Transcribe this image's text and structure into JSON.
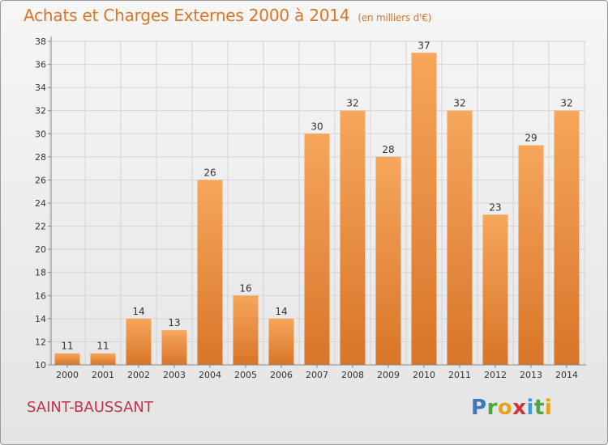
{
  "title": "Achats et Charges Externes 2000 à 2014",
  "subtitle": "(en milliers d'€)",
  "town": "SAINT-BAUSSANT",
  "logo": {
    "text": "Proxiti",
    "letters": [
      {
        "ch": "P",
        "color": "#3a78c3"
      },
      {
        "ch": "r",
        "color": "#4aa83f"
      },
      {
        "ch": "o",
        "color": "#e8a21a"
      },
      {
        "ch": "x",
        "color": "#d2323a"
      },
      {
        "ch": "i",
        "color": "#3a9bd6"
      },
      {
        "ch": "t",
        "color": "#4aa83f"
      },
      {
        "ch": "i",
        "color": "#e8a21a"
      }
    ]
  },
  "colors": {
    "title": "#d9762a",
    "bar_light": "#f6a65a",
    "bar_dark": "#d8752a",
    "town": "#c0314a"
  },
  "chart_data": {
    "type": "bar",
    "categories": [
      "2000",
      "2001",
      "2002",
      "2003",
      "2004",
      "2005",
      "2006",
      "2007",
      "2008",
      "2009",
      "2010",
      "2011",
      "2012",
      "2013",
      "2014"
    ],
    "values": [
      11,
      11,
      14,
      13,
      26,
      16,
      14,
      30,
      32,
      28,
      37,
      32,
      23,
      29,
      32
    ],
    "ylim": [
      10,
      38
    ],
    "yticks": [
      10,
      12,
      14,
      16,
      18,
      20,
      22,
      24,
      26,
      28,
      30,
      32,
      34,
      36,
      38
    ],
    "grid": true
  }
}
